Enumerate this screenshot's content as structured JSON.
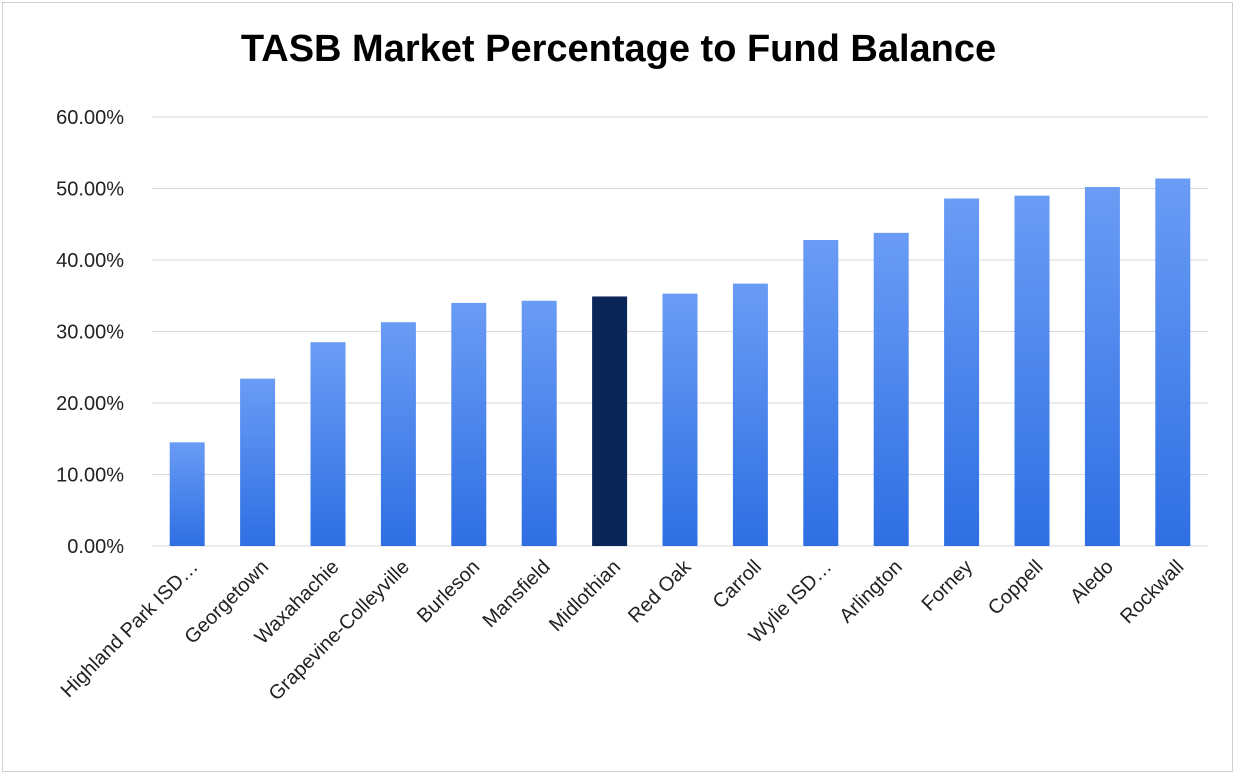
{
  "chart_data": {
    "type": "bar",
    "title": "TASB Market Percentage to Fund Balance",
    "xlabel": "",
    "ylabel": "",
    "ylim": [
      0,
      60
    ],
    "y_ticks": [
      0,
      10,
      20,
      30,
      40,
      50,
      60
    ],
    "y_tick_labels": [
      "0.00%",
      "10.00%",
      "20.00%",
      "30.00%",
      "40.00%",
      "50.00%",
      "60.00%"
    ],
    "grid": true,
    "legend": "none",
    "categories": [
      "Highland Park ISD…",
      "Georgetown",
      "Waxahachie",
      "Grapevine-Colleyville",
      "Burleson",
      "Mansfield",
      "Midlothian",
      "Red Oak",
      "Carroll",
      "Wylie ISD…",
      "Arlington",
      "Forney",
      "Coppell",
      "Aledo",
      "Rockwall"
    ],
    "values": [
      14.5,
      23.4,
      28.5,
      31.3,
      34.0,
      34.3,
      34.9,
      35.3,
      36.7,
      42.8,
      43.8,
      48.6,
      49.0,
      50.2,
      51.4
    ],
    "highlight_category": "Midlothian",
    "colors": {
      "bar_top": "#6a9cf5",
      "bar_bottom": "#2e6fe3",
      "highlight": "#0a2558",
      "grid": "#d9d9d9",
      "text": "#222222"
    }
  }
}
